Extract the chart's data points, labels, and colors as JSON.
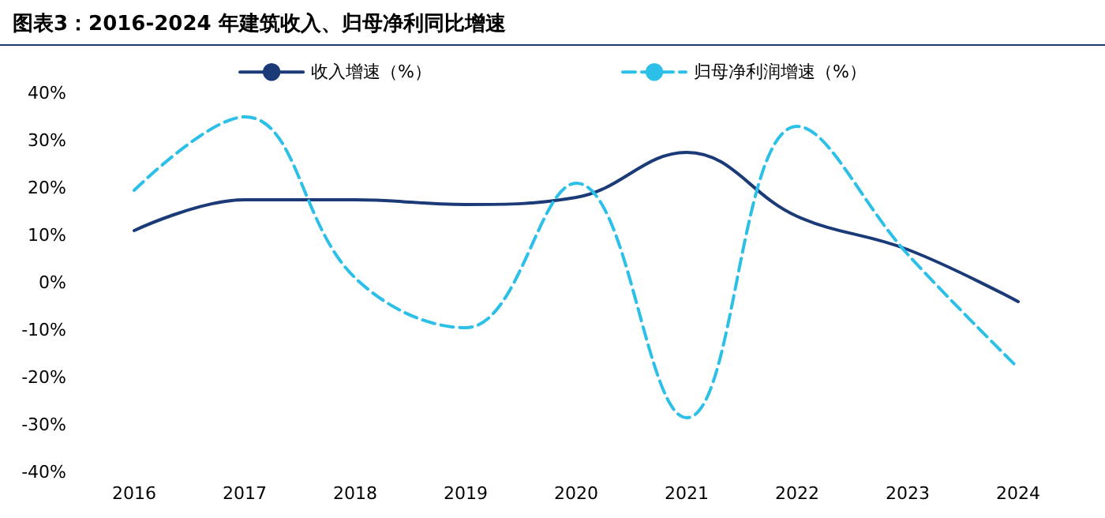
{
  "chart_data": {
    "type": "line",
    "title": "图表3：2016-2024 年建筑收入、归母净利同比增速",
    "categories": [
      "2016",
      "2017",
      "2018",
      "2019",
      "2020",
      "2021",
      "2022",
      "2023",
      "2024"
    ],
    "series": [
      {
        "name": "收入增速（%）",
        "color": "#1b3a78",
        "line_style": "solid",
        "values": [
          11,
          17.5,
          17.5,
          16.5,
          18,
          27.5,
          14,
          7,
          -4
        ]
      },
      {
        "name": "归母净利润增速（%）",
        "color": "#2cc0e8",
        "line_style": "dashed",
        "values": [
          19.5,
          35,
          1,
          -9.5,
          21,
          -28.5,
          33,
          6,
          -18
        ]
      }
    ],
    "ylim": [
      -40,
      40
    ],
    "yticks": [
      {
        "value": 40,
        "label": "40%"
      },
      {
        "value": 30,
        "label": "30%"
      },
      {
        "value": 20,
        "label": "20%"
      },
      {
        "value": 10,
        "label": "10%"
      },
      {
        "value": 0,
        "label": "0%"
      },
      {
        "value": -10,
        "label": "-10%"
      },
      {
        "value": -20,
        "label": "-20%"
      },
      {
        "value": -30,
        "label": "-30%"
      },
      {
        "value": -40,
        "label": "-40%"
      }
    ],
    "grid": false,
    "legend": "top",
    "marker": "none"
  }
}
